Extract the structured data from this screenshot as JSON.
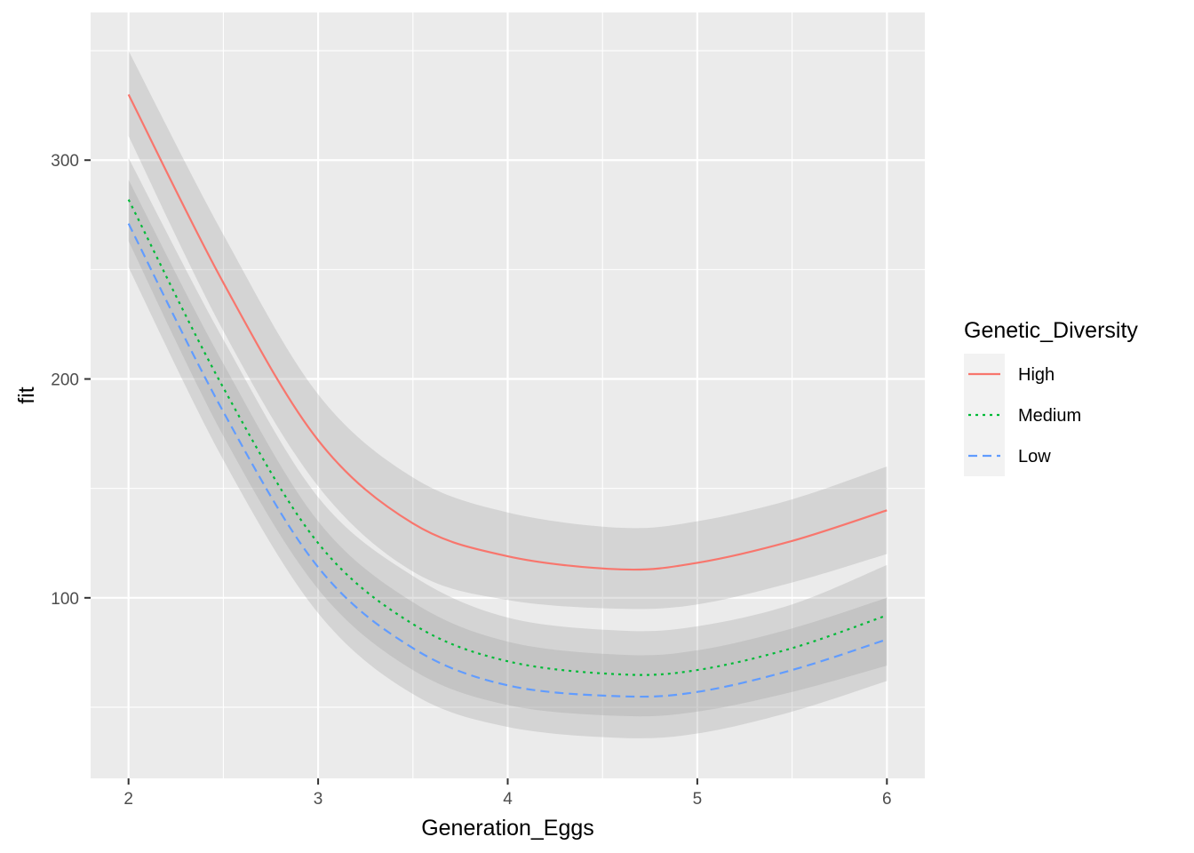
{
  "chart_data": {
    "type": "line",
    "title": "",
    "xlabel": "Generation_Eggs",
    "ylabel": "fit",
    "xlim": [
      1.8,
      6.2
    ],
    "ylim": [
      17.5,
      367.5
    ],
    "x_ticks": [
      2,
      3,
      4,
      5,
      6
    ],
    "x_tick_labels": [
      "2",
      "3",
      "4",
      "5",
      "6"
    ],
    "y_ticks": [
      100,
      200,
      300
    ],
    "y_tick_labels": [
      "100",
      "200",
      "300"
    ],
    "grid": true,
    "legend": {
      "title": "Genetic_Diversity",
      "position": "right"
    },
    "x": [
      2,
      2.5,
      3,
      3.5,
      4,
      4.6,
      5,
      5.5,
      6
    ],
    "series": [
      {
        "name": "High",
        "color": "#F8766D",
        "linetype": "solid",
        "values": [
          330,
          244,
          172,
          134,
          119,
          113,
          116,
          126,
          140
        ],
        "lower": [
          311,
          222,
          151,
          112,
          99,
          95,
          97,
          107,
          120
        ],
        "upper": [
          350,
          266,
          193,
          155,
          139,
          132,
          135,
          145,
          160
        ]
      },
      {
        "name": "Medium",
        "color": "#00BA38",
        "linetype": "dotted",
        "values": [
          282,
          196,
          125,
          88,
          71,
          65,
          67,
          77,
          92
        ],
        "lower": [
          263,
          174,
          104,
          67,
          51,
          46,
          48,
          57,
          69
        ],
        "upper": [
          301,
          218,
          146,
          110,
          91,
          85,
          87,
          97,
          115
        ]
      },
      {
        "name": "Low",
        "color": "#619CFF",
        "linetype": "dashed",
        "values": [
          271,
          185,
          114,
          77,
          60,
          55,
          57,
          67,
          81
        ],
        "lower": [
          251,
          163,
          93,
          56,
          41,
          36,
          38,
          48,
          62
        ],
        "upper": [
          291,
          207,
          135,
          98,
          80,
          74,
          76,
          86,
          100
        ]
      }
    ]
  }
}
